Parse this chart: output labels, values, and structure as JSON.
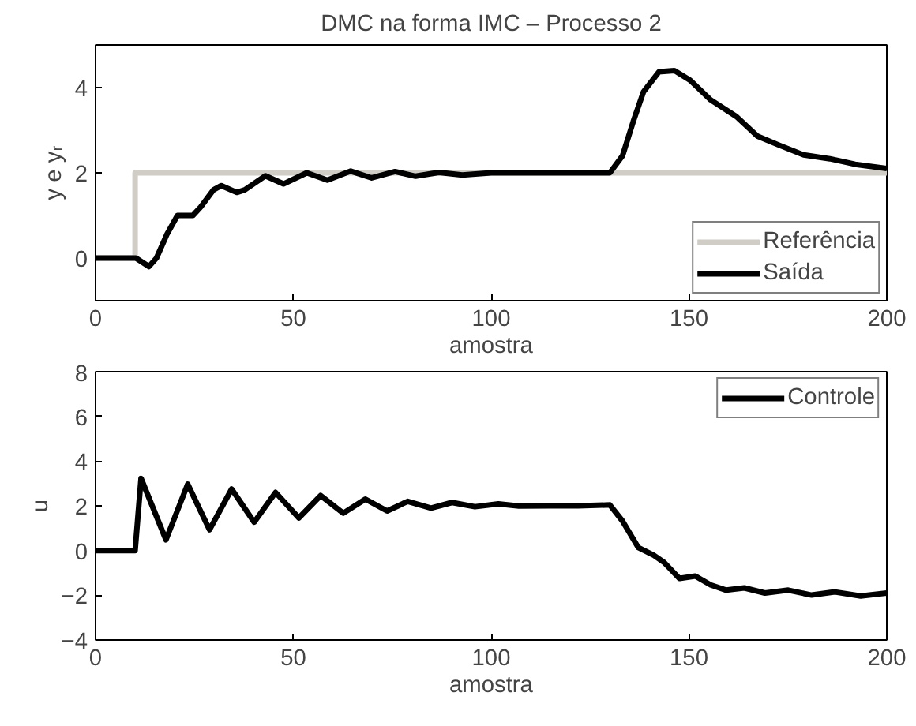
{
  "chart_data": [
    {
      "type": "line",
      "title": "DMC na forma IMC – Processo 2",
      "xlabel": "amostra",
      "ylabel": "y e yᵣ",
      "xlim": [
        0,
        200
      ],
      "xticks": [
        0,
        50,
        100,
        150,
        200
      ],
      "ylim": [
        -1,
        5
      ],
      "yticks": [
        0,
        2,
        4
      ],
      "grid": false,
      "legend": "bottom right",
      "marker": "none",
      "line_style": "solid",
      "series": [
        {
          "name": "Referência",
          "color": "#d0ccc6",
          "x": [
            0,
            10,
            10,
            200
          ],
          "values": [
            0,
            0,
            2,
            2
          ]
        },
        {
          "name": "Saída",
          "color": "#000000",
          "x": [
            0,
            10.2,
            13.5,
            15.4,
            18,
            20.7,
            24.6,
            26.6,
            29.8,
            31.8,
            35.7,
            37.7,
            42.9,
            47.5,
            53.4,
            58.6,
            64.5,
            69.8,
            75.7,
            80.9,
            86.8,
            92.7,
            100,
            110,
            120,
            130,
            133.2,
            135.9,
            138.5,
            142.4,
            146.3,
            150.3,
            155.5,
            162,
            167.3,
            172.5,
            179,
            185.6,
            192,
            200
          ],
          "values": [
            0,
            0,
            -0.2,
            0,
            0.55,
            1.0,
            1.0,
            1.2,
            1.6,
            1.7,
            1.54,
            1.6,
            1.93,
            1.74,
            2.0,
            1.83,
            2.04,
            1.88,
            2.03,
            1.92,
            2.01,
            1.95,
            2.0,
            2.0,
            2.0,
            2.0,
            2.4,
            3.2,
            3.9,
            4.37,
            4.4,
            4.17,
            3.71,
            3.32,
            2.86,
            2.66,
            2.42,
            2.33,
            2.2,
            2.1
          ]
        }
      ]
    },
    {
      "type": "line",
      "xlabel": "amostra",
      "ylabel": "u",
      "xlim": [
        0,
        200
      ],
      "xticks": [
        0,
        50,
        100,
        150,
        200
      ],
      "ylim": [
        -4,
        8
      ],
      "yticks": [
        -4,
        -2,
        0,
        2,
        4,
        6,
        8
      ],
      "grid": false,
      "legend": "top right",
      "marker": "none",
      "line_style": "solid",
      "series": [
        {
          "name": "Controle",
          "color": "#000000",
          "x": [
            0,
            10,
            11.5,
            17.8,
            23.3,
            28.8,
            34.4,
            40.1,
            45.5,
            51.4,
            56.9,
            62.6,
            68.2,
            73.7,
            78.9,
            84.8,
            90.1,
            95.9,
            101.8,
            107,
            115,
            122,
            130,
            133.2,
            137.2,
            141.1,
            143.7,
            147.6,
            151.6,
            155.5,
            159.4,
            164,
            169.2,
            175.1,
            181,
            186.9,
            193.4,
            200
          ],
          "values": [
            0,
            0,
            3.23,
            0.48,
            2.97,
            0.93,
            2.75,
            1.27,
            2.6,
            1.46,
            2.46,
            1.67,
            2.3,
            1.77,
            2.2,
            1.9,
            2.15,
            1.96,
            2.09,
            1.99,
            2.0,
            2.0,
            2.04,
            1.32,
            0.13,
            -0.21,
            -0.53,
            -1.25,
            -1.14,
            -1.54,
            -1.77,
            -1.67,
            -1.9,
            -1.77,
            -1.99,
            -1.85,
            -2.03,
            -1.9
          ]
        }
      ]
    }
  ]
}
